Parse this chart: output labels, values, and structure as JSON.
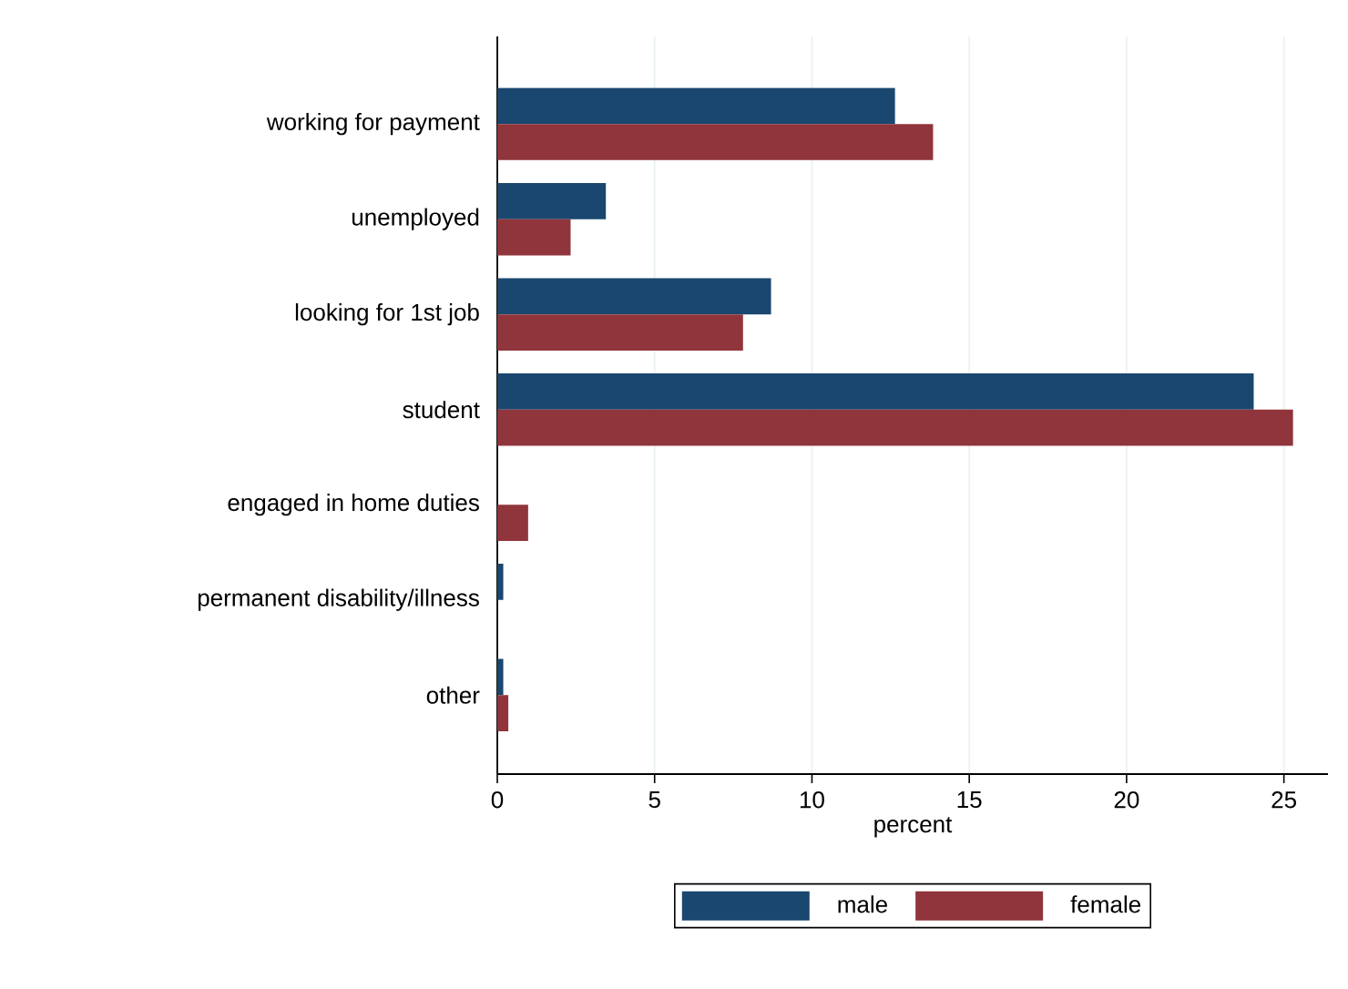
{
  "chart_data": {
    "type": "bar",
    "orientation": "horizontal",
    "xlabel": "percent",
    "categories": [
      "working for payment",
      "unemployed",
      "looking for 1st job",
      "student",
      "engaged in home duties",
      "permanent disability/illness",
      "other"
    ],
    "series": [
      {
        "name": "male",
        "color": "#1a476f",
        "values": [
          12.64,
          3.45,
          8.7,
          24.04,
          0,
          0.19,
          0.19
        ]
      },
      {
        "name": "female",
        "color": "#90353b",
        "values": [
          13.85,
          2.33,
          7.81,
          25.29,
          0.98,
          0,
          0.35
        ]
      }
    ],
    "xlim": [
      0,
      26.4
    ],
    "xticks": [
      0,
      5,
      10,
      15,
      20,
      25
    ],
    "grid": "x",
    "legend": "bottom"
  }
}
